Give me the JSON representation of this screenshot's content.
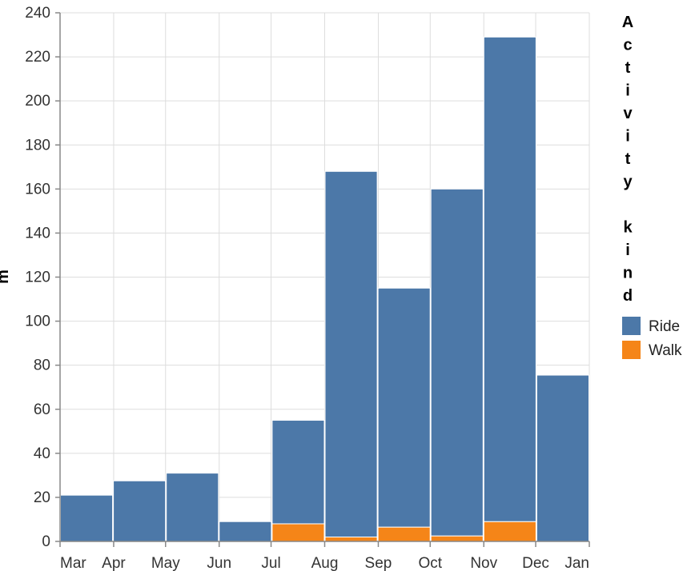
{
  "chart_data": {
    "type": "bar",
    "stacked": true,
    "categories": [
      "Mar",
      "Apr",
      "May",
      "Jun",
      "Jul",
      "Aug",
      "Sep",
      "Oct",
      "Nov",
      "Dec"
    ],
    "x_tick_labels": [
      "Mar",
      "Apr",
      "May",
      "Jun",
      "Jul",
      "Aug",
      "Sep",
      "Oct",
      "Nov",
      "Dec",
      "Jan"
    ],
    "series": [
      {
        "name": "Walk",
        "color": "#f58518",
        "values": [
          0,
          0,
          0,
          0,
          8,
          2,
          6.5,
          2.5,
          9,
          0
        ]
      },
      {
        "name": "Ride",
        "color": "#4c78a8",
        "values": [
          21,
          27.5,
          31,
          9,
          47,
          166,
          108.5,
          157.5,
          220,
          75.5
        ]
      }
    ],
    "ylim": [
      0,
      240
    ],
    "y_ticks": [
      0,
      20,
      40,
      60,
      80,
      100,
      120,
      140,
      160,
      180,
      200,
      220,
      240
    ],
    "ylabel": "m",
    "legend": {
      "title": "Activity kind",
      "placement": "right",
      "entries": [
        "Ride",
        "Walk"
      ]
    },
    "grid": true
  }
}
